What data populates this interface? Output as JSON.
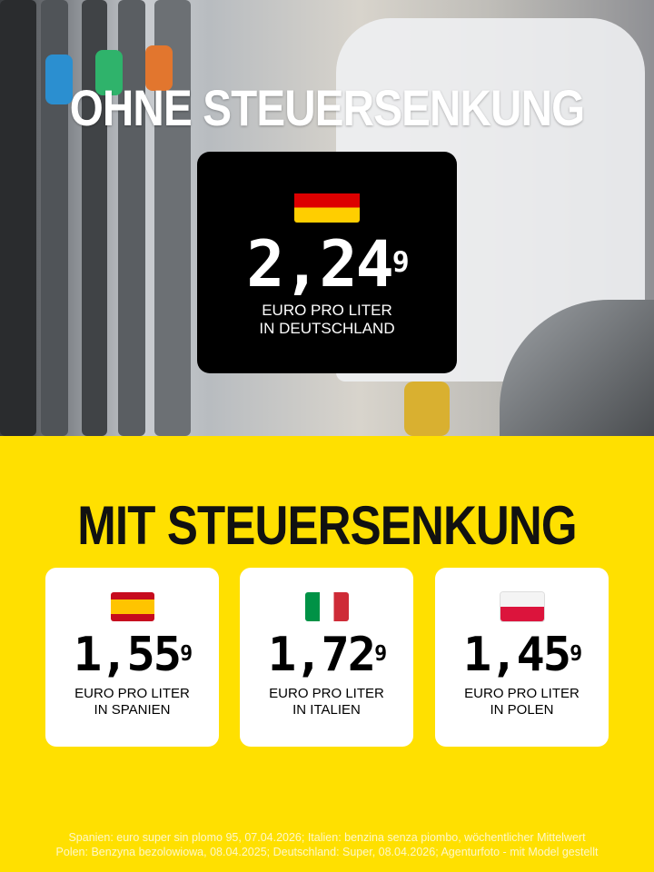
{
  "headline_top": "OHNE STEUERSENKUNG",
  "germany": {
    "flag": "flag-germany",
    "price": "2,24",
    "price_sup": "9",
    "unit": "EURO PRO LITER",
    "place": "IN DEUTSCHLAND"
  },
  "headline_bottom": "MIT STEUERSENKUNG",
  "countries": [
    {
      "flag": "flag-spain",
      "price": "1,55",
      "price_sup": "9",
      "unit": "EURO PRO LITER",
      "place": "IN SPANIEN"
    },
    {
      "flag": "flag-italy",
      "price": "1,72",
      "price_sup": "9",
      "unit": "EURO PRO LITER",
      "place": "IN ITALIEN"
    },
    {
      "flag": "flag-poland",
      "price": "1,45",
      "price_sup": "9",
      "unit": "EURO PRO LITER",
      "place": "IN POLEN"
    }
  ],
  "footer": {
    "line1": "Spanien: euro super sin plomo 95, 07.04.2026; Italien: benzina senza piombo, wöchentlicher Mittelwert",
    "line2": "Polen: Benzyna bezolowiowa, 08.04.2025; Deutschland: Super, 08.04.2026; Agenturfoto - mit Model gestellt"
  },
  "colors": {
    "background": "#ffe000",
    "box": "#000000",
    "card": "#ffffff"
  }
}
